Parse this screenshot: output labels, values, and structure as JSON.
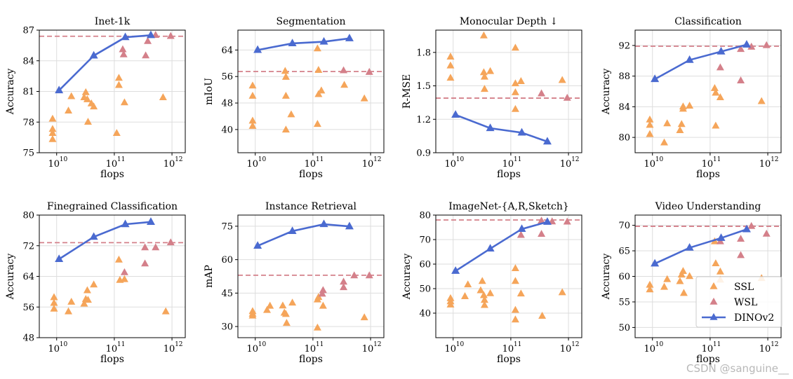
{
  "chart_data": [
    {
      "type": "scatter",
      "title": "Inet-1k",
      "xlabel": "flops",
      "ylabel": "Accuracy",
      "ylim": [
        75,
        87
      ],
      "yticks": [
        75,
        78,
        81,
        84,
        87
      ],
      "baseline": 86.4,
      "ssl": [
        [
          8500000000.0,
          78.3
        ],
        [
          8500000000.0,
          77.3
        ],
        [
          8500000000.0,
          76.9
        ],
        [
          8500000000.0,
          76.3
        ],
        [
          16000000000.0,
          79.1
        ],
        [
          18000000000.0,
          80.5
        ],
        [
          30000000000.0,
          80.4
        ],
        [
          32000000000.0,
          80.9
        ],
        [
          34000000000.0,
          80.2
        ],
        [
          35000000000.0,
          78.0
        ],
        [
          40000000000.0,
          79.8
        ],
        [
          44000000000.0,
          79.5
        ],
        [
          110000000000.0,
          76.9
        ],
        [
          120000000000.0,
          82.3
        ],
        [
          120000000000.0,
          81.6
        ],
        [
          150000000000.0,
          79.9
        ],
        [
          700000000000.0,
          80.4
        ]
      ],
      "wsl": [
        [
          140000000000.0,
          85.1
        ],
        [
          145000000000.0,
          84.6
        ],
        [
          350000000000.0,
          84.5
        ],
        [
          380000000000.0,
          85.9
        ],
        [
          520000000000.0,
          86.5
        ],
        [
          950000000000.0,
          86.4
        ]
      ],
      "dinov2": [
        [
          11000000000.0,
          81.1
        ],
        [
          44000000000.0,
          84.5
        ],
        [
          155000000000.0,
          86.3
        ],
        [
          430000000000.0,
          86.5
        ]
      ]
    },
    {
      "type": "scatter",
      "title": "Segmentation",
      "xlabel": "flops",
      "ylabel": "mIoU",
      "ylim": [
        33,
        70
      ],
      "yticks": [
        40,
        48,
        56,
        64
      ],
      "baseline": 57.5,
      "ssl": [
        [
          9000000000.0,
          53.2
        ],
        [
          9000000000.0,
          50.1
        ],
        [
          9000000000.0,
          42.6
        ],
        [
          9000000000.0,
          41.0
        ],
        [
          33000000000.0,
          57.6
        ],
        [
          34000000000.0,
          55.8
        ],
        [
          34000000000.0,
          50.1
        ],
        [
          34000000000.0,
          39.9
        ],
        [
          42000000000.0,
          44.5
        ],
        [
          120000000000.0,
          64.4
        ],
        [
          125000000000.0,
          57.9
        ],
        [
          125000000000.0,
          50.6
        ],
        [
          120000000000.0,
          41.6
        ],
        [
          140000000000.0,
          51.7
        ],
        [
          350000000000.0,
          53.4
        ],
        [
          780000000000.0,
          49.3
        ]
      ],
      "wsl": [
        [
          340000000000.0,
          57.8
        ],
        [
          950000000000.0,
          57.3
        ]
      ],
      "dinov2": [
        [
          11000000000.0,
          64.0
        ],
        [
          44000000000.0,
          66.0
        ],
        [
          155000000000.0,
          66.5
        ],
        [
          430000000000.0,
          67.5
        ]
      ]
    },
    {
      "type": "scatter",
      "title": "Monocular Depth ↓",
      "xlabel": "flops",
      "ylabel": "R-MSE",
      "ylim": [
        0.9,
        2.0
      ],
      "yticks": [
        0.9,
        1.2,
        1.5,
        1.8
      ],
      "baseline": 1.39,
      "ssl": [
        [
          9000000000.0,
          1.76
        ],
        [
          9000000000.0,
          1.68
        ],
        [
          9000000000.0,
          1.57
        ],
        [
          34000000000.0,
          1.95
        ],
        [
          34000000000.0,
          1.62
        ],
        [
          35000000000.0,
          1.58
        ],
        [
          35000000000.0,
          1.47
        ],
        [
          44000000000.0,
          1.63
        ],
        [
          120000000000.0,
          1.84
        ],
        [
          120000000000.0,
          1.52
        ],
        [
          120000000000.0,
          1.44
        ],
        [
          120000000000.0,
          1.29
        ],
        [
          150000000000.0,
          1.54
        ],
        [
          780000000000.0,
          1.55
        ]
      ],
      "wsl": [
        [
          340000000000.0,
          1.43
        ],
        [
          950000000000.0,
          1.39
        ]
      ],
      "dinov2": [
        [
          11000000000.0,
          1.24
        ],
        [
          44000000000.0,
          1.12
        ],
        [
          155000000000.0,
          1.08
        ],
        [
          430000000000.0,
          1.0
        ]
      ]
    },
    {
      "type": "scatter",
      "title": "Classification",
      "xlabel": "flops",
      "ylabel": "Accuracy",
      "ylim": [
        78,
        94
      ],
      "yticks": [
        80,
        84,
        88,
        92
      ],
      "baseline": 91.9,
      "ssl": [
        [
          9000000000.0,
          82.3
        ],
        [
          9000000000.0,
          81.6
        ],
        [
          9000000000.0,
          80.4
        ],
        [
          16000000000.0,
          79.3
        ],
        [
          18000000000.0,
          81.8
        ],
        [
          30000000000.0,
          80.9
        ],
        [
          32000000000.0,
          81.7
        ],
        [
          34000000000.0,
          83.7
        ],
        [
          34000000000.0,
          84.0
        ],
        [
          44000000000.0,
          84.1
        ],
        [
          120000000000.0,
          86.4
        ],
        [
          125000000000.0,
          85.8
        ],
        [
          125000000000.0,
          81.5
        ],
        [
          150000000000.0,
          85.2
        ],
        [
          780000000000.0,
          84.7
        ]
      ],
      "wsl": [
        [
          150000000000.0,
          89.1
        ],
        [
          340000000000.0,
          87.4
        ],
        [
          340000000000.0,
          91.5
        ],
        [
          520000000000.0,
          91.8
        ],
        [
          950000000000.0,
          92.0
        ]
      ],
      "dinov2": [
        [
          11000000000.0,
          87.6
        ],
        [
          44000000000.0,
          90.1
        ],
        [
          155000000000.0,
          91.2
        ],
        [
          430000000000.0,
          92.1
        ]
      ]
    },
    {
      "type": "scatter",
      "title": "Finegrained Classification",
      "xlabel": "flops",
      "ylabel": "Accuracy",
      "ylim": [
        48,
        80
      ],
      "yticks": [
        48,
        56,
        64,
        72,
        80
      ],
      "baseline": 72.8,
      "ssl": [
        [
          9000000000.0,
          58.5
        ],
        [
          9000000000.0,
          57.0
        ],
        [
          9000000000.0,
          55.5
        ],
        [
          16000000000.0,
          54.8
        ],
        [
          18000000000.0,
          57.3
        ],
        [
          30000000000.0,
          56.8
        ],
        [
          32000000000.0,
          58.0
        ],
        [
          34000000000.0,
          60.3
        ],
        [
          35000000000.0,
          57.8
        ],
        [
          44000000000.0,
          61.8
        ],
        [
          120000000000.0,
          68.3
        ],
        [
          125000000000.0,
          63.0
        ],
        [
          150000000000.0,
          63.2
        ],
        [
          780000000000.0,
          54.8
        ]
      ],
      "wsl": [
        [
          150000000000.0,
          65.0
        ],
        [
          340000000000.0,
          67.3
        ],
        [
          340000000000.0,
          71.5
        ],
        [
          520000000000.0,
          71.5
        ],
        [
          950000000000.0,
          72.8
        ]
      ],
      "dinov2": [
        [
          11000000000.0,
          68.5
        ],
        [
          44000000000.0,
          74.3
        ],
        [
          155000000000.0,
          77.6
        ],
        [
          430000000000.0,
          78.2
        ]
      ]
    },
    {
      "type": "scatter",
      "title": "Instance Retrieval",
      "xlabel": "flops",
      "ylabel": "mAP",
      "ylim": [
        25,
        80
      ],
      "yticks": [
        30,
        45,
        60,
        75
      ],
      "baseline": 53.0,
      "ssl": [
        [
          9000000000.0,
          36.8
        ],
        [
          9000000000.0,
          35.6
        ],
        [
          9000000000.0,
          34.8
        ],
        [
          16000000000.0,
          37.3
        ],
        [
          18000000000.0,
          39.2
        ],
        [
          30000000000.0,
          39.3
        ],
        [
          32000000000.0,
          36.1
        ],
        [
          34000000000.0,
          35.5
        ],
        [
          35000000000.0,
          31.5
        ],
        [
          44000000000.0,
          40.6
        ],
        [
          120000000000.0,
          42.0
        ],
        [
          120000000000.0,
          29.4
        ],
        [
          125000000000.0,
          43.1
        ],
        [
          150000000000.0,
          39.2
        ],
        [
          780000000000.0,
          34.0
        ]
      ],
      "wsl": [
        [
          145000000000.0,
          44.6
        ],
        [
          150000000000.0,
          46.2
        ],
        [
          340000000000.0,
          47.5
        ],
        [
          340000000000.0,
          50.0
        ],
        [
          520000000000.0,
          52.8
        ],
        [
          950000000000.0,
          52.8
        ]
      ],
      "dinov2": [
        [
          11000000000.0,
          66.2
        ],
        [
          44000000000.0,
          72.8
        ],
        [
          155000000000.0,
          75.9
        ],
        [
          430000000000.0,
          74.9
        ]
      ]
    },
    {
      "type": "scatter",
      "title": "ImageNet-{A,R,Sketch}",
      "xlabel": "flops",
      "ylabel": "Accuracy",
      "ylim": [
        30,
        80
      ],
      "yticks": [
        40,
        50,
        60,
        70,
        80
      ],
      "baseline": 78.0,
      "ssl": [
        [
          9000000000.0,
          46.0
        ],
        [
          9000000000.0,
          44.7
        ],
        [
          9000000000.0,
          43.4
        ],
        [
          16000000000.0,
          46.8
        ],
        [
          18000000000.0,
          51.6
        ],
        [
          30000000000.0,
          49.2
        ],
        [
          32000000000.0,
          53.0
        ],
        [
          34000000000.0,
          47.2
        ],
        [
          35000000000.0,
          45.3
        ],
        [
          35000000000.0,
          43.2
        ],
        [
          44000000000.0,
          48.0
        ],
        [
          120000000000.0,
          58.2
        ],
        [
          120000000000.0,
          53.0
        ],
        [
          120000000000.0,
          41.2
        ],
        [
          120000000000.0,
          37.3
        ],
        [
          150000000000.0,
          47.9
        ],
        [
          350000000000.0,
          38.8
        ],
        [
          780000000000.0,
          48.4
        ]
      ],
      "wsl": [
        [
          150000000000.0,
          71.8
        ],
        [
          340000000000.0,
          72.2
        ],
        [
          340000000000.0,
          77.6
        ],
        [
          520000000000.0,
          77.3
        ],
        [
          950000000000.0,
          77.2
        ]
      ],
      "dinov2": [
        [
          11000000000.0,
          57.2
        ],
        [
          44000000000.0,
          66.3
        ],
        [
          155000000000.0,
          74.3
        ],
        [
          430000000000.0,
          77.2
        ]
      ]
    },
    {
      "type": "scatter",
      "title": "Video Understanding",
      "xlabel": "flops",
      "ylabel": "Accuracy",
      "ylim": [
        48,
        72
      ],
      "yticks": [
        50,
        55,
        60,
        65,
        70
      ],
      "baseline": 69.8,
      "ssl": [
        [
          9000000000.0,
          58.3
        ],
        [
          9000000000.0,
          57.4
        ],
        [
          16000000000.0,
          57.9
        ],
        [
          18000000000.0,
          59.4
        ],
        [
          30000000000.0,
          59.0
        ],
        [
          32000000000.0,
          60.3
        ],
        [
          34000000000.0,
          61.0
        ],
        [
          35000000000.0,
          56.7
        ],
        [
          44000000000.0,
          60.0
        ],
        [
          120000000000.0,
          66.8
        ],
        [
          125000000000.0,
          62.5
        ],
        [
          150000000000.0,
          60.9
        ],
        [
          150000000000.0,
          59.3
        ],
        [
          780000000000.0,
          59.6
        ]
      ],
      "wsl": [
        [
          150000000000.0,
          66.8
        ],
        [
          340000000000.0,
          67.3
        ],
        [
          340000000000.0,
          64.1
        ],
        [
          520000000000.0,
          69.8
        ],
        [
          950000000000.0,
          68.3
        ]
      ],
      "dinov2": [
        [
          11000000000.0,
          62.5
        ],
        [
          44000000000.0,
          65.6
        ],
        [
          155000000000.0,
          67.5
        ],
        [
          430000000000.0,
          69.2
        ]
      ]
    }
  ],
  "legend": {
    "ssl": "SSL",
    "wsl": "WSL",
    "dinov2": "DINOv2"
  },
  "colors": {
    "ssl": "#f5a55a",
    "wsl": "#d4808a",
    "dinov2": "#4a6ad0",
    "baseline": "#d4808a",
    "grid": "#dddddd"
  },
  "x_tick_base": "10",
  "x_tick_exponents": [
    "10",
    "11",
    "12"
  ],
  "watermark": "CSDN @sanguine__"
}
